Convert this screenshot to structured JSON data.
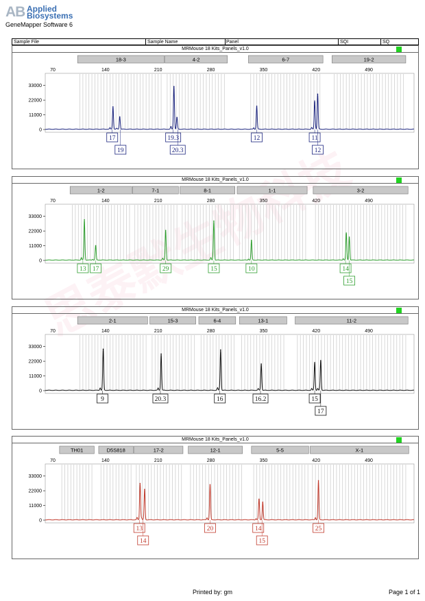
{
  "header": {
    "logo_mark": "AB",
    "brand_line1": "Applied",
    "brand_line2": "Biosystems",
    "software": "GeneMapper Software 6"
  },
  "columns": [
    "Sample File",
    "Sample Name",
    "Panel",
    "SQI",
    "SQ"
  ],
  "footer": {
    "printed_by": "Printed by: gm",
    "page": "Page 1 of 1"
  },
  "colors": {
    "flag": "#21d321",
    "panel1": "#1a237e",
    "panel2": "#2e9e2e",
    "panel3": "#111111",
    "panel4": "#c0392b"
  },
  "chart_data": [
    {
      "type": "line",
      "title": "MRMouse 18 Kits_Panels_v1.0",
      "x_ticks": [
        70,
        140,
        210,
        280,
        350,
        420,
        490
      ],
      "xlim": [
        60,
        550
      ],
      "y_ticks": [
        0,
        11000,
        22000,
        33000
      ],
      "ylim": [
        0,
        40000
      ],
      "color": "#1a237e",
      "markers": [
        {
          "name": "18-3",
          "start": 103,
          "end": 218
        },
        {
          "name": "4-2",
          "start": 219,
          "end": 302
        },
        {
          "name": "6-7",
          "start": 330,
          "end": 429
        },
        {
          "name": "19-2",
          "start": 441,
          "end": 539
        }
      ],
      "peaks": [
        {
          "x": 150,
          "h": 17000
        },
        {
          "x": 159,
          "h": 9500
        },
        {
          "x": 231,
          "h": 32000
        },
        {
          "x": 235,
          "h": 9000
        },
        {
          "x": 341,
          "h": 17500
        },
        {
          "x": 418,
          "h": 20000
        },
        {
          "x": 422,
          "h": 26500
        }
      ],
      "labels": [
        {
          "text": "17",
          "x": 149,
          "row": 0
        },
        {
          "text": "19",
          "x": 160,
          "row": 1
        },
        {
          "text": "19.3",
          "x": 230,
          "row": 0
        },
        {
          "text": "20.3",
          "x": 236,
          "row": 1
        },
        {
          "text": "12",
          "x": 341,
          "row": 0
        },
        {
          "text": "11",
          "x": 418,
          "row": 0
        },
        {
          "text": "12",
          "x": 422,
          "row": 1
        }
      ]
    },
    {
      "type": "line",
      "title": "MRMouse 18 Kits_Panels_v1.0",
      "x_ticks": [
        70,
        140,
        210,
        280,
        350,
        420,
        490
      ],
      "xlim": [
        60,
        550
      ],
      "y_ticks": [
        0,
        11000,
        22000,
        33000
      ],
      "ylim": [
        0,
        40000
      ],
      "color": "#2e9e2e",
      "markers": [
        {
          "name": "1-2",
          "start": 93,
          "end": 175
        },
        {
          "name": "7-1",
          "start": 176,
          "end": 237
        },
        {
          "name": "8-1",
          "start": 239,
          "end": 312
        },
        {
          "name": "1-1",
          "start": 315,
          "end": 408
        },
        {
          "name": "3-2",
          "start": 416,
          "end": 542
        }
      ],
      "peaks": [
        {
          "x": 112,
          "h": 30500
        },
        {
          "x": 127,
          "h": 11000
        },
        {
          "x": 220,
          "h": 22500
        },
        {
          "x": 284,
          "h": 29500
        },
        {
          "x": 334,
          "h": 15000
        },
        {
          "x": 460,
          "h": 19500
        },
        {
          "x": 464,
          "h": 17500
        }
      ],
      "labels": [
        {
          "text": "13",
          "x": 110,
          "row": 0
        },
        {
          "text": "17",
          "x": 127,
          "row": 0
        },
        {
          "text": "29",
          "x": 220,
          "row": 0
        },
        {
          "text": "15",
          "x": 284,
          "row": 0
        },
        {
          "text": "10",
          "x": 334,
          "row": 0
        },
        {
          "text": "14",
          "x": 459,
          "row": 0
        },
        {
          "text": "15",
          "x": 464,
          "row": 1
        }
      ]
    },
    {
      "type": "line",
      "title": "MRMouse 18 Kits_Panels_v1.0",
      "x_ticks": [
        70,
        140,
        210,
        280,
        350,
        420,
        490
      ],
      "xlim": [
        60,
        550
      ],
      "y_ticks": [
        0,
        11000,
        22000,
        33000
      ],
      "ylim": [
        0,
        40000
      ],
      "color": "#111111",
      "markers": [
        {
          "name": "2-1",
          "start": 103,
          "end": 196
        },
        {
          "name": "15-3",
          "start": 199,
          "end": 260
        },
        {
          "name": "6-4",
          "start": 264,
          "end": 313
        },
        {
          "name": "13-1",
          "start": 318,
          "end": 381
        },
        {
          "name": "11-2",
          "start": 392,
          "end": 542
        }
      ],
      "peaks": [
        {
          "x": 137,
          "h": 31000
        },
        {
          "x": 214,
          "h": 27500
        },
        {
          "x": 293,
          "h": 30500
        },
        {
          "x": 347,
          "h": 20000
        },
        {
          "x": 418,
          "h": 21000
        },
        {
          "x": 426,
          "h": 22500
        }
      ],
      "labels": [
        {
          "text": "9",
          "x": 136,
          "row": 0
        },
        {
          "text": "20.3",
          "x": 213,
          "row": 0
        },
        {
          "text": "16",
          "x": 292,
          "row": 0
        },
        {
          "text": "16.2",
          "x": 346,
          "row": 0
        },
        {
          "text": "15",
          "x": 418,
          "row": 0
        },
        {
          "text": "17",
          "x": 426,
          "row": 1
        }
      ]
    },
    {
      "type": "line",
      "title": "MRMouse 18 Kits_Panels_v1.0",
      "x_ticks": [
        70,
        140,
        210,
        280,
        350,
        420,
        490
      ],
      "xlim": [
        60,
        550
      ],
      "y_ticks": [
        0,
        11000,
        22000,
        33000
      ],
      "ylim": [
        0,
        40000
      ],
      "color": "#c0392b",
      "markers": [
        {
          "name": "TH01",
          "start": 79,
          "end": 125
        },
        {
          "name": "D5S818",
          "start": 131,
          "end": 177
        },
        {
          "name": "17-2",
          "start": 178,
          "end": 243
        },
        {
          "name": "12-1",
          "start": 250,
          "end": 322
        },
        {
          "name": "5-5",
          "start": 334,
          "end": 410
        },
        {
          "name": "X-1",
          "start": 412,
          "end": 543
        }
      ],
      "peaks": [
        {
          "x": 186,
          "h": 27500
        },
        {
          "x": 192,
          "h": 23000
        },
        {
          "x": 279,
          "h": 26500
        },
        {
          "x": 344,
          "h": 15500
        },
        {
          "x": 349,
          "h": 13500
        },
        {
          "x": 423,
          "h": 29500
        }
      ],
      "labels": [
        {
          "text": "13",
          "x": 185,
          "row": 0
        },
        {
          "text": "14",
          "x": 190,
          "row": 1
        },
        {
          "text": "20",
          "x": 279,
          "row": 0
        },
        {
          "text": "14",
          "x": 343,
          "row": 0
        },
        {
          "text": "15",
          "x": 348,
          "row": 1
        },
        {
          "text": "25",
          "x": 423,
          "row": 0
        }
      ]
    }
  ]
}
